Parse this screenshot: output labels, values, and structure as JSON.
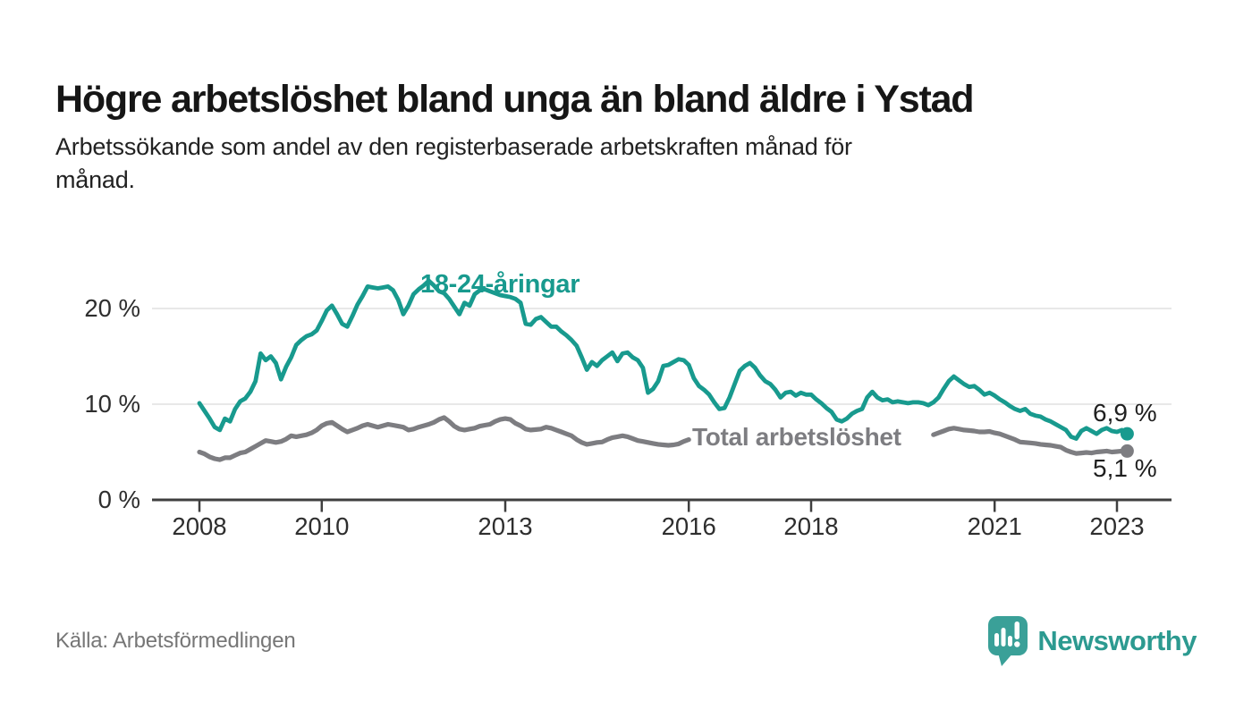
{
  "header": {
    "title": "Högre arbetslöshet bland unga än bland äldre i Ystad",
    "subtitle_line1": "Arbetssökande som andel av den registerbaserade arbetskraften månad för",
    "subtitle_line2": "månad."
  },
  "footer": {
    "source": "Källa: Arbetsförmedlingen",
    "brand": "Newsworthy"
  },
  "colors": {
    "youth_line": "#189a8e",
    "total_line": "#7d7d81",
    "grid": "#d9d9d9",
    "axis": "#3f3f3f",
    "tick_text": "#2e2e2e",
    "value_text": "#1f1f1f",
    "source_text": "#767676",
    "logo_teal": "#3aa098",
    "brand_text": "#2c9a90"
  },
  "chart_data": {
    "type": "line",
    "title": "Arbetssökande som andel av den registerbaserade arbetskraften månad för månad",
    "xlabel": "",
    "ylabel": "",
    "frequency": "monthly",
    "x_start": "2008-01",
    "x_end": "2023-03",
    "ylim": [
      0,
      24.2
    ],
    "grid": "horizontal",
    "legend_position": "inline-labels",
    "x_ticks": [
      {
        "label": "2008",
        "year": 2008
      },
      {
        "label": "2010",
        "year": 2010
      },
      {
        "label": "2013",
        "year": 2013
      },
      {
        "label": "2016",
        "year": 2016
      },
      {
        "label": "2018",
        "year": 2018
      },
      {
        "label": "2021",
        "year": 2021
      },
      {
        "label": "2023",
        "year": 2023
      }
    ],
    "y_ticks": [
      {
        "label": "0 %",
        "value": 0
      },
      {
        "label": "10 %",
        "value": 10
      },
      {
        "label": "20 %",
        "value": 20
      }
    ],
    "series": [
      {
        "name": "18-24-åringar",
        "end_label": "6,9 %",
        "end_value": 6.9,
        "values": [
          10.1,
          9.3,
          8.5,
          7.6,
          7.3,
          8.5,
          8.2,
          9.5,
          10.3,
          10.6,
          11.3,
          12.4,
          15.3,
          14.6,
          15.0,
          14.3,
          12.6,
          13.9,
          14.9,
          16.2,
          16.7,
          17.1,
          17.3,
          17.7,
          18.7,
          19.8,
          20.3,
          19.4,
          18.4,
          18.1,
          19.2,
          20.4,
          21.3,
          22.3,
          22.2,
          22.1,
          22.2,
          22.3,
          21.9,
          20.9,
          19.4,
          20.3,
          21.5,
          22.0,
          22.4,
          22.9,
          22.4,
          21.8,
          21.6,
          21.0,
          20.2,
          19.4,
          20.6,
          20.3,
          21.5,
          21.9,
          22.0,
          21.8,
          21.6,
          21.4,
          21.3,
          21.2,
          21.0,
          20.6,
          18.4,
          18.3,
          18.9,
          19.1,
          18.6,
          18.1,
          18.1,
          17.6,
          17.2,
          16.7,
          16.1,
          14.9,
          13.6,
          14.4,
          14.0,
          14.6,
          15.0,
          15.4,
          14.5,
          15.3,
          15.4,
          14.9,
          14.6,
          13.8,
          11.2,
          11.6,
          12.4,
          14.0,
          14.1,
          14.4,
          14.7,
          14.6,
          14.1,
          12.7,
          11.9,
          11.5,
          11.0,
          10.2,
          9.5,
          9.6,
          10.7,
          12.1,
          13.5,
          14.0,
          14.3,
          13.8,
          13.0,
          12.4,
          12.1,
          11.5,
          10.7,
          11.2,
          11.3,
          10.9,
          11.2,
          11.0,
          11.0,
          10.5,
          10.1,
          9.6,
          9.2,
          8.4,
          8.2,
          8.5,
          9.0,
          9.3,
          9.5,
          10.7,
          11.3,
          10.7,
          10.4,
          10.5,
          10.2,
          10.3,
          10.2,
          10.1,
          10.2,
          10.2,
          10.1,
          9.9,
          10.2,
          10.7,
          11.6,
          12.4,
          12.9,
          12.5,
          12.1,
          11.8,
          11.9,
          11.5,
          11.0,
          11.2,
          10.9,
          10.5,
          10.2,
          9.8,
          9.5,
          9.3,
          9.5,
          9.0,
          8.8,
          8.7,
          8.4,
          8.2,
          7.9,
          7.6,
          7.3,
          6.6,
          6.4,
          7.2,
          7.5,
          7.2,
          6.9,
          7.3,
          7.5,
          7.2,
          7.1,
          7.3,
          6.9
        ]
      },
      {
        "name": "Total arbetslöshet",
        "end_label": "5,1 %",
        "end_value": 5.1,
        "gap_behind_label": [
          97,
          143
        ],
        "values": [
          5.0,
          4.8,
          4.5,
          4.3,
          4.2,
          4.4,
          4.4,
          4.65,
          4.9,
          5.0,
          5.3,
          5.6,
          5.9,
          6.2,
          6.1,
          6.0,
          6.1,
          6.35,
          6.7,
          6.6,
          6.7,
          6.8,
          7.0,
          7.3,
          7.75,
          8.0,
          8.1,
          7.75,
          7.4,
          7.1,
          7.3,
          7.5,
          7.75,
          7.9,
          7.75,
          7.6,
          7.75,
          7.9,
          7.8,
          7.7,
          7.6,
          7.3,
          7.4,
          7.6,
          7.75,
          7.9,
          8.1,
          8.4,
          8.6,
          8.2,
          7.7,
          7.4,
          7.3,
          7.4,
          7.5,
          7.7,
          7.8,
          7.9,
          8.2,
          8.4,
          8.5,
          8.4,
          8.0,
          7.75,
          7.4,
          7.3,
          7.35,
          7.4,
          7.6,
          7.5,
          7.3,
          7.1,
          6.9,
          6.7,
          6.3,
          6.0,
          5.8,
          5.9,
          6.0,
          6.05,
          6.3,
          6.5,
          6.6,
          6.7,
          6.6,
          6.4,
          6.2,
          6.1,
          6.0,
          5.9,
          5.8,
          5.75,
          5.7,
          5.75,
          5.85,
          6.1,
          6.3,
          6.0,
          5.7,
          5.4,
          5.2,
          5.1,
          5.2,
          5.3,
          5.4,
          5.5,
          5.6,
          5.7,
          5.8,
          5.8,
          5.7,
          5.7,
          5.6,
          5.6,
          5.7,
          5.8,
          5.8,
          5.9,
          6.0,
          6.0,
          6.1,
          6.1,
          6.0,
          5.9,
          5.9,
          5.8,
          5.9,
          6.0,
          6.1,
          6.2,
          6.3,
          6.4,
          6.5,
          6.5,
          6.6,
          6.6,
          6.7,
          6.7,
          6.8,
          6.9,
          7.0,
          7.0,
          7.1,
          7.2,
          6.8,
          7.0,
          7.2,
          7.4,
          7.5,
          7.4,
          7.3,
          7.25,
          7.2,
          7.1,
          7.1,
          7.15,
          7.0,
          6.9,
          6.7,
          6.5,
          6.3,
          6.05,
          6.0,
          5.95,
          5.9,
          5.8,
          5.75,
          5.7,
          5.6,
          5.5,
          5.2,
          5.0,
          4.85,
          4.9,
          4.95,
          4.9,
          5.0,
          5.05,
          5.1,
          5.0,
          5.05,
          5.1,
          5.1
        ]
      }
    ]
  }
}
